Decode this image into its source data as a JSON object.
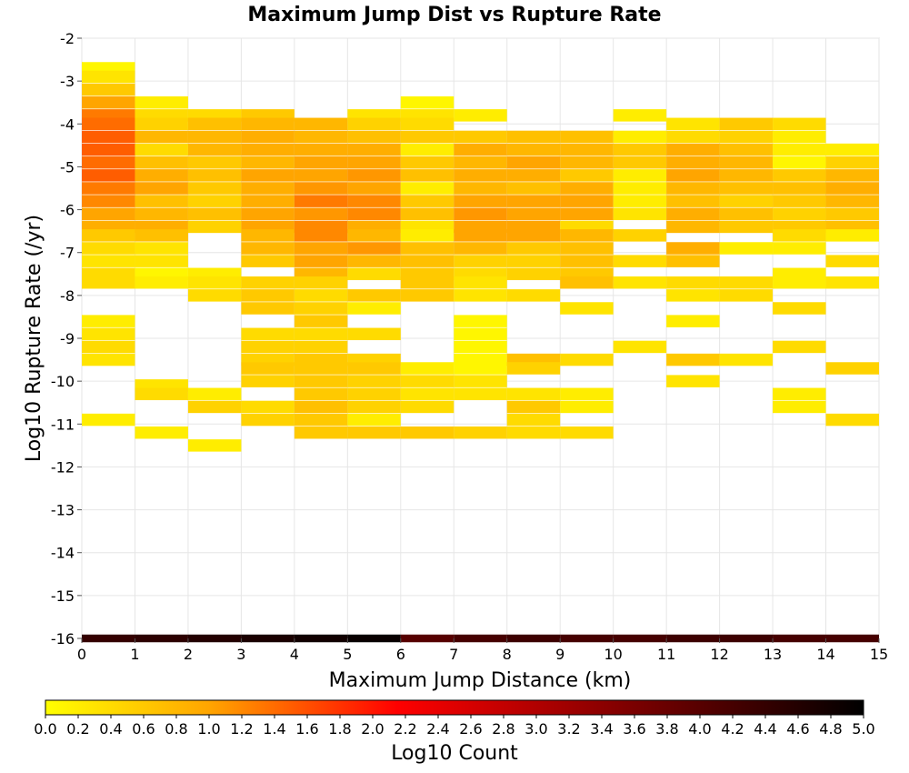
{
  "chart_data": {
    "type": "heatmap",
    "title": "Maximum Jump Dist vs Rupture Rate",
    "xlabel": "Maximum Jump Distance (km)",
    "ylabel": "Log10 Rupture Rate (/yr)",
    "xlim": [
      0,
      15
    ],
    "ylim": [
      -16,
      -2
    ],
    "x_ticks": [
      "0",
      "1",
      "2",
      "3",
      "4",
      "5",
      "6",
      "7",
      "8",
      "9",
      "10",
      "11",
      "12",
      "13",
      "14",
      "15"
    ],
    "y_ticks": [
      "-2",
      "-3",
      "-4",
      "-5",
      "-6",
      "-7",
      "-8",
      "-9",
      "-10",
      "-11",
      "-12",
      "-13",
      "-14",
      "-15",
      "-16"
    ],
    "x_bin_width": 1,
    "y_bin_width": 0.286,
    "grid": true,
    "colorbar": {
      "label": "Log10 Count",
      "range": [
        0,
        5
      ],
      "ticks": [
        "0.0",
        "0.2",
        "0.4",
        "0.6",
        "0.8",
        "1.0",
        "1.2",
        "1.4",
        "1.6",
        "1.8",
        "2.0",
        "2.2",
        "2.4",
        "2.6",
        "2.8",
        "3.0",
        "3.2",
        "3.4",
        "3.6",
        "3.8",
        "4.0",
        "4.2",
        "4.4",
        "4.6",
        "4.8",
        "5.0"
      ],
      "colors": [
        "#ffff00",
        "#ffa500",
        "#ff0000",
        "#000000"
      ]
    },
    "bottom_row": {
      "y": -16,
      "values": [
        4.4,
        4.5,
        4.6,
        4.7,
        4.8,
        4.9,
        4.0,
        4.2,
        4.3,
        4.2,
        4.2,
        4.3,
        4.3,
        4.2,
        4.2
      ]
    },
    "columns": [
      {
        "x": 0,
        "cells": [
          [
            -2.7,
            0.1
          ],
          [
            -2.9,
            0.3
          ],
          [
            -3.2,
            0.6
          ],
          [
            -3.5,
            1.0
          ],
          [
            -3.8,
            1.3
          ],
          [
            -4.0,
            1.4
          ],
          [
            -4.3,
            1.5
          ],
          [
            -4.6,
            1.5
          ],
          [
            -4.9,
            1.4
          ],
          [
            -5.2,
            1.5
          ],
          [
            -5.5,
            1.3
          ],
          [
            -5.8,
            1.2
          ],
          [
            -6.1,
            1.0
          ],
          [
            -6.4,
            0.9
          ],
          [
            -6.6,
            0.6
          ],
          [
            -6.9,
            0.4
          ],
          [
            -7.2,
            0.3
          ],
          [
            -7.5,
            0.4
          ],
          [
            -7.7,
            0.4
          ],
          [
            -8.6,
            0.2
          ],
          [
            -8.9,
            0.3
          ],
          [
            -9.2,
            0.4
          ],
          [
            -9.5,
            0.3
          ],
          [
            -10.9,
            0.2
          ]
        ]
      },
      {
        "x": 1,
        "cells": [
          [
            -3.5,
            0.2
          ],
          [
            -3.8,
            0.4
          ],
          [
            -4.0,
            0.5
          ],
          [
            -4.3,
            0.8
          ],
          [
            -4.6,
            0.4
          ],
          [
            -4.9,
            0.7
          ],
          [
            -5.2,
            0.9
          ],
          [
            -5.5,
            1.0
          ],
          [
            -5.8,
            0.7
          ],
          [
            -6.1,
            0.8
          ],
          [
            -6.4,
            0.9
          ],
          [
            -6.6,
            0.7
          ],
          [
            -6.9,
            0.3
          ],
          [
            -7.2,
            0.3
          ],
          [
            -7.5,
            0.1
          ],
          [
            -7.7,
            0.2
          ],
          [
            -10.1,
            0.3
          ],
          [
            -10.3,
            0.4
          ],
          [
            -11.2,
            0.2
          ]
        ]
      },
      {
        "x": 2,
        "cells": [
          [
            -3.8,
            0.4
          ],
          [
            -4.0,
            0.7
          ],
          [
            -4.3,
            0.8
          ],
          [
            -4.6,
            0.8
          ],
          [
            -4.9,
            0.6
          ],
          [
            -5.2,
            0.7
          ],
          [
            -5.5,
            0.6
          ],
          [
            -5.8,
            0.5
          ],
          [
            -6.1,
            0.7
          ],
          [
            -6.4,
            0.5
          ],
          [
            -7.5,
            0.2
          ],
          [
            -7.7,
            0.3
          ],
          [
            -8.0,
            0.4
          ],
          [
            -10.3,
            0.2
          ],
          [
            -10.6,
            0.5
          ],
          [
            -11.5,
            0.2
          ]
        ]
      },
      {
        "x": 3,
        "cells": [
          [
            -3.8,
            0.6
          ],
          [
            -4.0,
            0.8
          ],
          [
            -4.3,
            0.9
          ],
          [
            -4.6,
            0.9
          ],
          [
            -4.9,
            0.8
          ],
          [
            -5.2,
            1.0
          ],
          [
            -5.5,
            0.9
          ],
          [
            -5.8,
            0.9
          ],
          [
            -6.1,
            1.0
          ],
          [
            -6.4,
            1.0
          ],
          [
            -6.6,
            0.8
          ],
          [
            -6.9,
            0.8
          ],
          [
            -7.2,
            0.6
          ],
          [
            -7.7,
            0.5
          ],
          [
            -8.0,
            0.6
          ],
          [
            -8.3,
            0.6
          ],
          [
            -8.9,
            0.4
          ],
          [
            -9.2,
            0.5
          ],
          [
            -9.5,
            0.5
          ],
          [
            -9.7,
            0.6
          ],
          [
            -10.0,
            0.5
          ],
          [
            -10.6,
            0.4
          ],
          [
            -10.9,
            0.5
          ]
        ]
      },
      {
        "x": 4,
        "cells": [
          [
            -4.0,
            0.8
          ],
          [
            -4.3,
            0.8
          ],
          [
            -4.6,
            0.9
          ],
          [
            -4.9,
            1.0
          ],
          [
            -5.2,
            1.0
          ],
          [
            -5.5,
            1.1
          ],
          [
            -5.8,
            1.3
          ],
          [
            -6.1,
            1.1
          ],
          [
            -6.4,
            1.2
          ],
          [
            -6.6,
            1.2
          ],
          [
            -6.9,
            1.0
          ],
          [
            -7.2,
            1.0
          ],
          [
            -7.5,
            0.8
          ],
          [
            -7.7,
            0.5
          ],
          [
            -8.0,
            0.4
          ],
          [
            -8.3,
            0.5
          ],
          [
            -8.6,
            0.6
          ],
          [
            -8.9,
            0.4
          ],
          [
            -9.2,
            0.5
          ],
          [
            -9.5,
            0.6
          ],
          [
            -9.7,
            0.6
          ],
          [
            -10.0,
            0.6
          ],
          [
            -10.3,
            0.6
          ],
          [
            -10.6,
            0.7
          ],
          [
            -10.9,
            0.6
          ],
          [
            -11.2,
            0.6
          ]
        ]
      },
      {
        "x": 5,
        "cells": [
          [
            -3.8,
            0.3
          ],
          [
            -4.0,
            0.5
          ],
          [
            -4.3,
            0.7
          ],
          [
            -4.6,
            0.9
          ],
          [
            -4.9,
            1.0
          ],
          [
            -5.2,
            1.1
          ],
          [
            -5.5,
            1.0
          ],
          [
            -5.8,
            1.2
          ],
          [
            -6.1,
            1.2
          ],
          [
            -6.4,
            0.9
          ],
          [
            -6.6,
            0.8
          ],
          [
            -6.9,
            1.1
          ],
          [
            -7.2,
            0.8
          ],
          [
            -7.5,
            0.4
          ],
          [
            -8.0,
            0.6
          ],
          [
            -8.3,
            0.2
          ],
          [
            -8.9,
            0.4
          ],
          [
            -9.5,
            0.5
          ],
          [
            -9.7,
            0.6
          ],
          [
            -10.0,
            0.5
          ],
          [
            -10.3,
            0.5
          ],
          [
            -10.6,
            0.5
          ],
          [
            -10.9,
            0.2
          ],
          [
            -11.2,
            0.6
          ]
        ]
      },
      {
        "x": 6,
        "cells": [
          [
            -3.5,
            0.1
          ],
          [
            -3.8,
            0.3
          ],
          [
            -4.0,
            0.4
          ],
          [
            -4.3,
            0.6
          ],
          [
            -4.6,
            0.2
          ],
          [
            -4.9,
            0.6
          ],
          [
            -5.2,
            0.7
          ],
          [
            -5.5,
            0.2
          ],
          [
            -5.8,
            0.6
          ],
          [
            -6.1,
            0.7
          ],
          [
            -6.4,
            0.3
          ],
          [
            -6.6,
            0.2
          ],
          [
            -6.9,
            0.7
          ],
          [
            -7.2,
            0.7
          ],
          [
            -7.5,
            0.6
          ],
          [
            -7.7,
            0.6
          ],
          [
            -8.0,
            0.6
          ],
          [
            -9.7,
            0.2
          ],
          [
            -10.0,
            0.4
          ],
          [
            -10.3,
            0.3
          ],
          [
            -10.6,
            0.4
          ],
          [
            -11.2,
            0.6
          ]
        ]
      },
      {
        "x": 7,
        "cells": [
          [
            -3.8,
            0.2
          ],
          [
            -4.3,
            0.6
          ],
          [
            -4.6,
            0.9
          ],
          [
            -4.9,
            0.8
          ],
          [
            -5.2,
            0.9
          ],
          [
            -5.5,
            0.8
          ],
          [
            -5.8,
            1.0
          ],
          [
            -6.1,
            1.1
          ],
          [
            -6.4,
            1.0
          ],
          [
            -6.6,
            1.0
          ],
          [
            -6.9,
            0.8
          ],
          [
            -7.2,
            0.5
          ],
          [
            -7.5,
            0.4
          ],
          [
            -7.7,
            0.3
          ],
          [
            -8.0,
            0.3
          ],
          [
            -8.6,
            0.1
          ],
          [
            -8.9,
            0.1
          ],
          [
            -9.2,
            0.1
          ],
          [
            -9.5,
            0.1
          ],
          [
            -9.7,
            0.1
          ],
          [
            -10.0,
            0.3
          ],
          [
            -10.3,
            0.3
          ],
          [
            -11.2,
            0.5
          ]
        ]
      },
      {
        "x": 8,
        "cells": [
          [
            -4.3,
            0.7
          ],
          [
            -4.6,
            0.8
          ],
          [
            -4.9,
            1.0
          ],
          [
            -5.2,
            0.9
          ],
          [
            -5.5,
            0.7
          ],
          [
            -5.8,
            1.0
          ],
          [
            -6.1,
            1.0
          ],
          [
            -6.4,
            1.0
          ],
          [
            -6.6,
            1.0
          ],
          [
            -6.9,
            0.6
          ],
          [
            -7.2,
            0.5
          ],
          [
            -7.5,
            0.5
          ],
          [
            -8.0,
            0.4
          ],
          [
            -9.5,
            0.7
          ],
          [
            -9.7,
            0.5
          ],
          [
            -10.3,
            0.3
          ],
          [
            -10.6,
            0.6
          ],
          [
            -10.9,
            0.4
          ],
          [
            -11.2,
            0.4
          ]
        ]
      },
      {
        "x": 9,
        "cells": [
          [
            -4.3,
            0.7
          ],
          [
            -4.6,
            0.8
          ],
          [
            -4.9,
            0.8
          ],
          [
            -5.2,
            0.6
          ],
          [
            -5.5,
            0.9
          ],
          [
            -5.8,
            1.0
          ],
          [
            -6.1,
            1.0
          ],
          [
            -6.4,
            0.4
          ],
          [
            -6.6,
            0.8
          ],
          [
            -6.9,
            0.7
          ],
          [
            -7.2,
            0.7
          ],
          [
            -7.5,
            0.6
          ],
          [
            -7.7,
            0.7
          ],
          [
            -8.3,
            0.3
          ],
          [
            -9.5,
            0.4
          ],
          [
            -10.3,
            0.2
          ],
          [
            -10.6,
            0.2
          ],
          [
            -11.2,
            0.4
          ]
        ]
      },
      {
        "x": 10,
        "cells": [
          [
            -3.8,
            0.2
          ],
          [
            -4.3,
            0.2
          ],
          [
            -4.6,
            0.6
          ],
          [
            -4.9,
            0.6
          ],
          [
            -5.2,
            0.2
          ],
          [
            -5.5,
            0.2
          ],
          [
            -5.8,
            0.2
          ],
          [
            -6.1,
            0.3
          ],
          [
            -6.6,
            0.5
          ],
          [
            -7.2,
            0.4
          ],
          [
            -7.7,
            0.3
          ],
          [
            -9.2,
            0.3
          ]
        ]
      },
      {
        "x": 11,
        "cells": [
          [
            -4.0,
            0.3
          ],
          [
            -4.3,
            0.4
          ],
          [
            -4.6,
            0.9
          ],
          [
            -4.9,
            0.9
          ],
          [
            -5.2,
            1.0
          ],
          [
            -5.5,
            0.8
          ],
          [
            -5.8,
            0.7
          ],
          [
            -6.1,
            0.9
          ],
          [
            -6.4,
            0.8
          ],
          [
            -6.9,
            0.9
          ],
          [
            -7.2,
            0.7
          ],
          [
            -7.7,
            0.4
          ],
          [
            -8.0,
            0.3
          ],
          [
            -8.6,
            0.2
          ],
          [
            -9.5,
            0.6
          ],
          [
            -10.0,
            0.3
          ]
        ]
      },
      {
        "x": 12,
        "cells": [
          [
            -4.0,
            0.6
          ],
          [
            -4.3,
            0.5
          ],
          [
            -4.6,
            0.7
          ],
          [
            -4.9,
            0.8
          ],
          [
            -5.2,
            0.8
          ],
          [
            -5.5,
            0.7
          ],
          [
            -5.8,
            0.5
          ],
          [
            -6.1,
            0.7
          ],
          [
            -6.4,
            0.6
          ],
          [
            -6.9,
            0.2
          ],
          [
            -7.7,
            0.4
          ],
          [
            -8.0,
            0.4
          ],
          [
            -9.5,
            0.3
          ]
        ]
      },
      {
        "x": 13,
        "cells": [
          [
            -4.0,
            0.4
          ],
          [
            -4.3,
            0.2
          ],
          [
            -4.6,
            0.2
          ],
          [
            -4.9,
            0.1
          ],
          [
            -5.2,
            0.6
          ],
          [
            -5.5,
            0.7
          ],
          [
            -5.8,
            0.6
          ],
          [
            -6.1,
            0.5
          ],
          [
            -6.4,
            0.6
          ],
          [
            -6.6,
            0.4
          ],
          [
            -6.9,
            0.2
          ],
          [
            -7.5,
            0.2
          ],
          [
            -7.7,
            0.2
          ],
          [
            -8.3,
            0.4
          ],
          [
            -9.2,
            0.4
          ],
          [
            -10.3,
            0.2
          ],
          [
            -10.6,
            0.2
          ]
        ]
      },
      {
        "x": 14,
        "cells": [
          [
            -4.6,
            0.2
          ],
          [
            -4.9,
            0.5
          ],
          [
            -5.2,
            0.8
          ],
          [
            -5.5,
            0.9
          ],
          [
            -5.8,
            0.8
          ],
          [
            -6.1,
            0.6
          ],
          [
            -6.4,
            0.7
          ],
          [
            -6.6,
            0.2
          ],
          [
            -7.2,
            0.4
          ],
          [
            -7.7,
            0.3
          ],
          [
            -9.7,
            0.5
          ],
          [
            -10.9,
            0.4
          ]
        ]
      }
    ]
  }
}
